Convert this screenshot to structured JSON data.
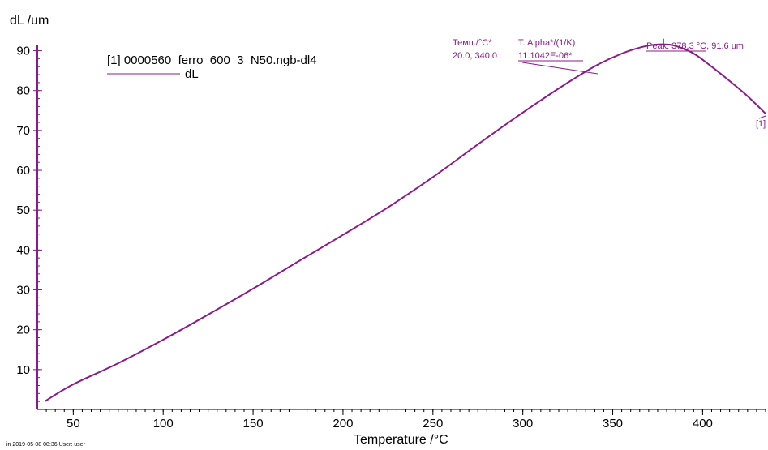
{
  "chart_data": {
    "type": "line",
    "title": "",
    "xlabel": "Temperature /°C",
    "ylabel": "dL /um",
    "xlim": [
      30,
      435
    ],
    "ylim": [
      0,
      95
    ],
    "x_ticks": [
      50,
      100,
      150,
      200,
      250,
      300,
      350,
      400
    ],
    "y_ticks": [
      10,
      20,
      30,
      40,
      50,
      60,
      70,
      80,
      90
    ],
    "series": [
      {
        "name": "dL",
        "color": "#8b1a8b",
        "x": [
          34,
          50,
          75,
          100,
          125,
          150,
          175,
          200,
          225,
          250,
          275,
          300,
          325,
          340,
          350,
          360,
          370,
          378.3,
          385,
          395,
          405,
          415,
          425,
          435
        ],
        "y": [
          2.0,
          6.3,
          11.6,
          17.5,
          23.8,
          30.3,
          37.1,
          43.8,
          50.7,
          58.3,
          66.5,
          74.5,
          82.0,
          86.1,
          88.3,
          90.1,
          91.3,
          91.6,
          91.2,
          89.3,
          86.0,
          82.4,
          78.6,
          74.2
        ]
      }
    ],
    "legend": {
      "position": "top-left",
      "file_label": "[1] 0000560_ferro_600_3_N50.ngb-dl4",
      "series_label": "dL"
    },
    "annotations": {
      "temp_header": "Темп./°C*",
      "alpha_header": "T. Alpha*/(1/K)",
      "temp_range": "20.0, 340.0 :",
      "alpha_value": "11.1042E-06*",
      "peak_label": "Peak: 378.3 °C, 91.6 um",
      "peak_x": 378.3,
      "peak_y": 91.6,
      "curve_tag": "[1]"
    },
    "grid": false
  },
  "footer": {
    "text": "in   2019-05-08 08:36    User: user"
  },
  "colors": {
    "curve": "#8b1a8b",
    "axis": "#000000"
  }
}
